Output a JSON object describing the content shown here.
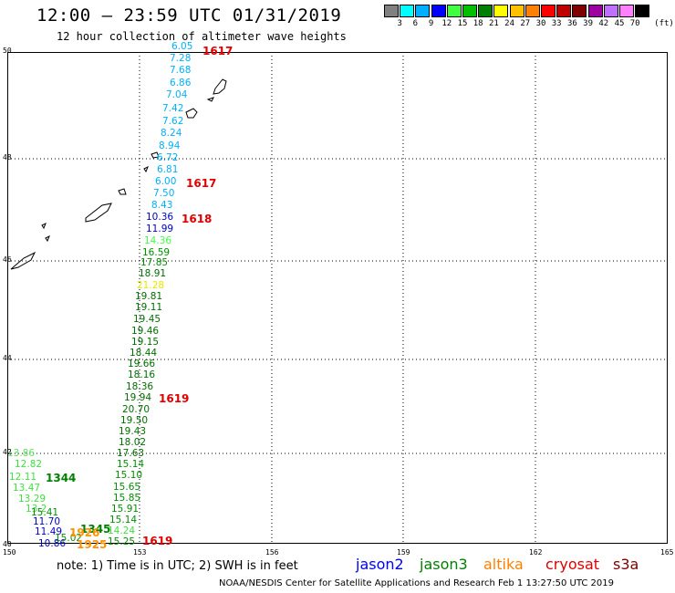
{
  "title": "12:00 – 23:59 UTC 01/31/2019",
  "subtitle": "12 hour collection of altimeter wave heights",
  "legend": {
    "unit": "(ft)",
    "colors": [
      "#808080",
      "#00ffff",
      "#00b0ff",
      "#0000ff",
      "#40ff40",
      "#00c000",
      "#008000",
      "#ffff00",
      "#ffc000",
      "#ff8000",
      "#ff0000",
      "#c00000",
      "#800000",
      "#a000a0",
      "#c070ff",
      "#ff80ff",
      "#000000"
    ],
    "values": [
      "3",
      "6",
      "9",
      "12",
      "15",
      "18",
      "21",
      "24",
      "27",
      "30",
      "33",
      "36",
      "39",
      "42",
      "45",
      "70"
    ]
  },
  "lat_labels": [
    "50",
    "48",
    "46",
    "44",
    "42",
    "40"
  ],
  "lon_labels": [
    "150",
    "153",
    "156",
    "159",
    "162",
    "165"
  ],
  "measurements": [
    {
      "v": "6.05",
      "c": "#00b0ff"
    },
    {
      "v": "7.28",
      "c": "#00b0ff"
    },
    {
      "v": "7.68",
      "c": "#00b0ff"
    },
    {
      "v": "6.86",
      "c": "#00b0ff"
    },
    {
      "v": "7.04",
      "c": "#00b0ff"
    },
    {
      "v": "7.42",
      "c": "#00b0ff"
    },
    {
      "v": "7.62",
      "c": "#00b0ff"
    },
    {
      "v": "8.24",
      "c": "#00b0ff"
    },
    {
      "v": "8.94",
      "c": "#00b0ff"
    },
    {
      "v": "6.72",
      "c": "#00b0ff"
    },
    {
      "v": "6.81",
      "c": "#00b0ff"
    },
    {
      "v": "6.00",
      "c": "#00b0ff"
    },
    {
      "v": "7.50",
      "c": "#00b0ff"
    },
    {
      "v": "8.43",
      "c": "#00b0ff"
    },
    {
      "v": "10.36",
      "c": "#0000cc"
    },
    {
      "v": "11.99",
      "c": "#0000cc"
    },
    {
      "v": "14.36",
      "c": "#40ff40"
    },
    {
      "v": "16.59",
      "c": "#009000"
    },
    {
      "v": "17.85",
      "c": "#009000"
    },
    {
      "v": "18.91",
      "c": "#007000"
    },
    {
      "v": "21.28",
      "c": "#e8e800"
    },
    {
      "v": "19.81",
      "c": "#007000"
    },
    {
      "v": "19.11",
      "c": "#007000"
    },
    {
      "v": "19.45",
      "c": "#007000"
    },
    {
      "v": "19.46",
      "c": "#007000"
    },
    {
      "v": "19.15",
      "c": "#007000"
    },
    {
      "v": "18.44",
      "c": "#007000"
    },
    {
      "v": "19.66",
      "c": "#007000"
    },
    {
      "v": "18.16",
      "c": "#007000"
    },
    {
      "v": "18.36",
      "c": "#007000"
    },
    {
      "v": "19.94",
      "c": "#007000"
    },
    {
      "v": "20.70",
      "c": "#007000"
    },
    {
      "v": "19.50",
      "c": "#007000"
    },
    {
      "v": "19.43",
      "c": "#007000"
    },
    {
      "v": "18.02",
      "c": "#007000"
    },
    {
      "v": "17.63",
      "c": "#007000"
    },
    {
      "v": "15.14",
      "c": "#009000"
    },
    {
      "v": "15.10",
      "c": "#009000"
    },
    {
      "v": "15.65",
      "c": "#009000"
    },
    {
      "v": "15.85",
      "c": "#009000"
    },
    {
      "v": "15.91",
      "c": "#009000"
    },
    {
      "v": "15.14",
      "c": "#009000"
    },
    {
      "v": "14.24",
      "c": "#40e040"
    },
    {
      "v": "15.25",
      "c": "#009000"
    }
  ],
  "sw_measurements": [
    {
      "v": "13.86",
      "c": "#60e060"
    },
    {
      "v": "12.82",
      "c": "#40e040"
    },
    {
      "v": "12.11",
      "c": "#40e040"
    },
    {
      "v": "13.47",
      "c": "#40e040"
    },
    {
      "v": "13.29",
      "c": "#40e040"
    },
    {
      "v": "13.2",
      "c": "#40e040"
    },
    {
      "v": "15.41",
      "c": "#009000"
    },
    {
      "v": "11.70",
      "c": "#0000cc"
    },
    {
      "v": "11.49",
      "c": "#0000cc"
    },
    {
      "v": "10.86",
      "c": "#0000cc"
    },
    {
      "v": "15.02",
      "c": "#009000"
    }
  ],
  "pass_times": [
    {
      "t": "1617",
      "c": "#e00000"
    },
    {
      "t": "1617",
      "c": "#e00000"
    },
    {
      "t": "1618",
      "c": "#e00000"
    },
    {
      "t": "1619",
      "c": "#e00000"
    },
    {
      "t": "1344",
      "c": "#008000"
    },
    {
      "t": "1345",
      "c": "#008000"
    },
    {
      "t": "1926",
      "c": "#ff9000"
    },
    {
      "t": "1925",
      "c": "#ff9000"
    },
    {
      "t": "1619",
      "c": "#e00000"
    }
  ],
  "note": "note: 1) Time is in UTC; 2) SWH is in feet",
  "satellites": [
    {
      "name": "jason2",
      "color": "#0000ff"
    },
    {
      "name": "jason3",
      "color": "#008000"
    },
    {
      "name": "altika",
      "color": "#ff8000"
    },
    {
      "name": "cryosat",
      "color": "#e00000"
    },
    {
      "name": "s3a",
      "color": "#800000"
    }
  ],
  "credit": "NOAA/NESDIS Center for Satellite Applications and Research    Feb  1 13:27:50 UTC 2019"
}
